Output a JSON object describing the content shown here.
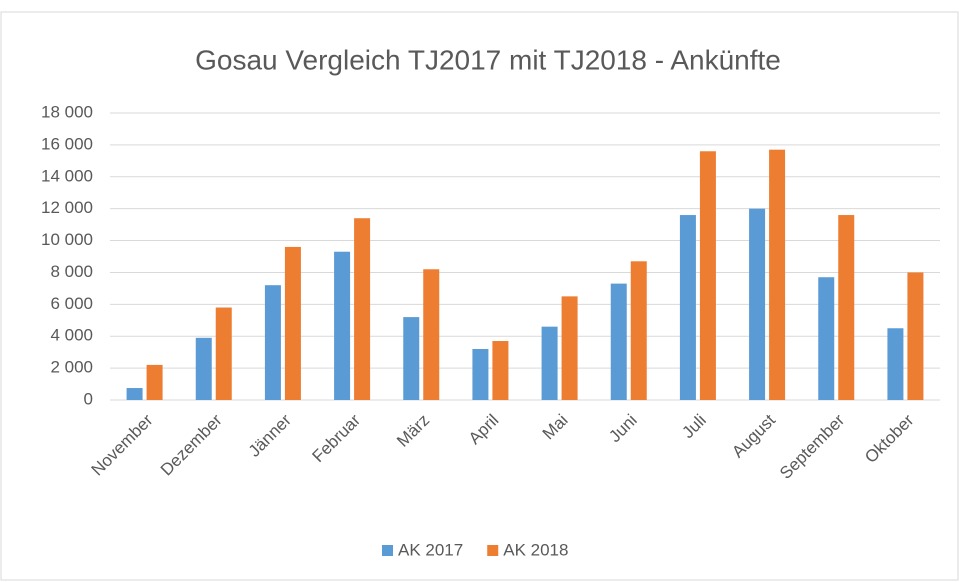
{
  "chart_data": {
    "type": "bar",
    "title": "Gosau Vergleich TJ2017 mit TJ2018 - Ankünfte",
    "categories": [
      "November",
      "Dezember",
      "Jänner",
      "Februar",
      "März",
      "April",
      "Mai",
      "Juni",
      "Juli",
      "August",
      "September",
      "Oktober"
    ],
    "series": [
      {
        "name": "AK 2017",
        "color": "#5b9bd5",
        "values": [
          750,
          3900,
          7200,
          9300,
          5200,
          3200,
          4600,
          7300,
          11600,
          12000,
          7700,
          4500
        ]
      },
      {
        "name": "AK 2018",
        "color": "#ed7d31",
        "values": [
          2200,
          5800,
          9600,
          11400,
          8200,
          3700,
          6500,
          8700,
          15600,
          15700,
          11600,
          8000
        ]
      }
    ],
    "ylim": [
      0,
      18000
    ],
    "yticks": [
      0,
      {
        "value": 2000,
        "label": "2 000"
      },
      {
        "value": 4000,
        "label": "4 000"
      },
      {
        "value": 6000,
        "label": "6 000"
      },
      {
        "value": 8000,
        "label": "8 000"
      },
      {
        "value": 10000,
        "label": "10 000"
      },
      {
        "value": 12000,
        "label": "12 000"
      },
      {
        "value": 14000,
        "label": "14 000"
      },
      {
        "value": 16000,
        "label": "16 000"
      },
      {
        "value": 18000,
        "label": "18 000"
      }
    ],
    "grid": true,
    "legend": "bottom"
  }
}
